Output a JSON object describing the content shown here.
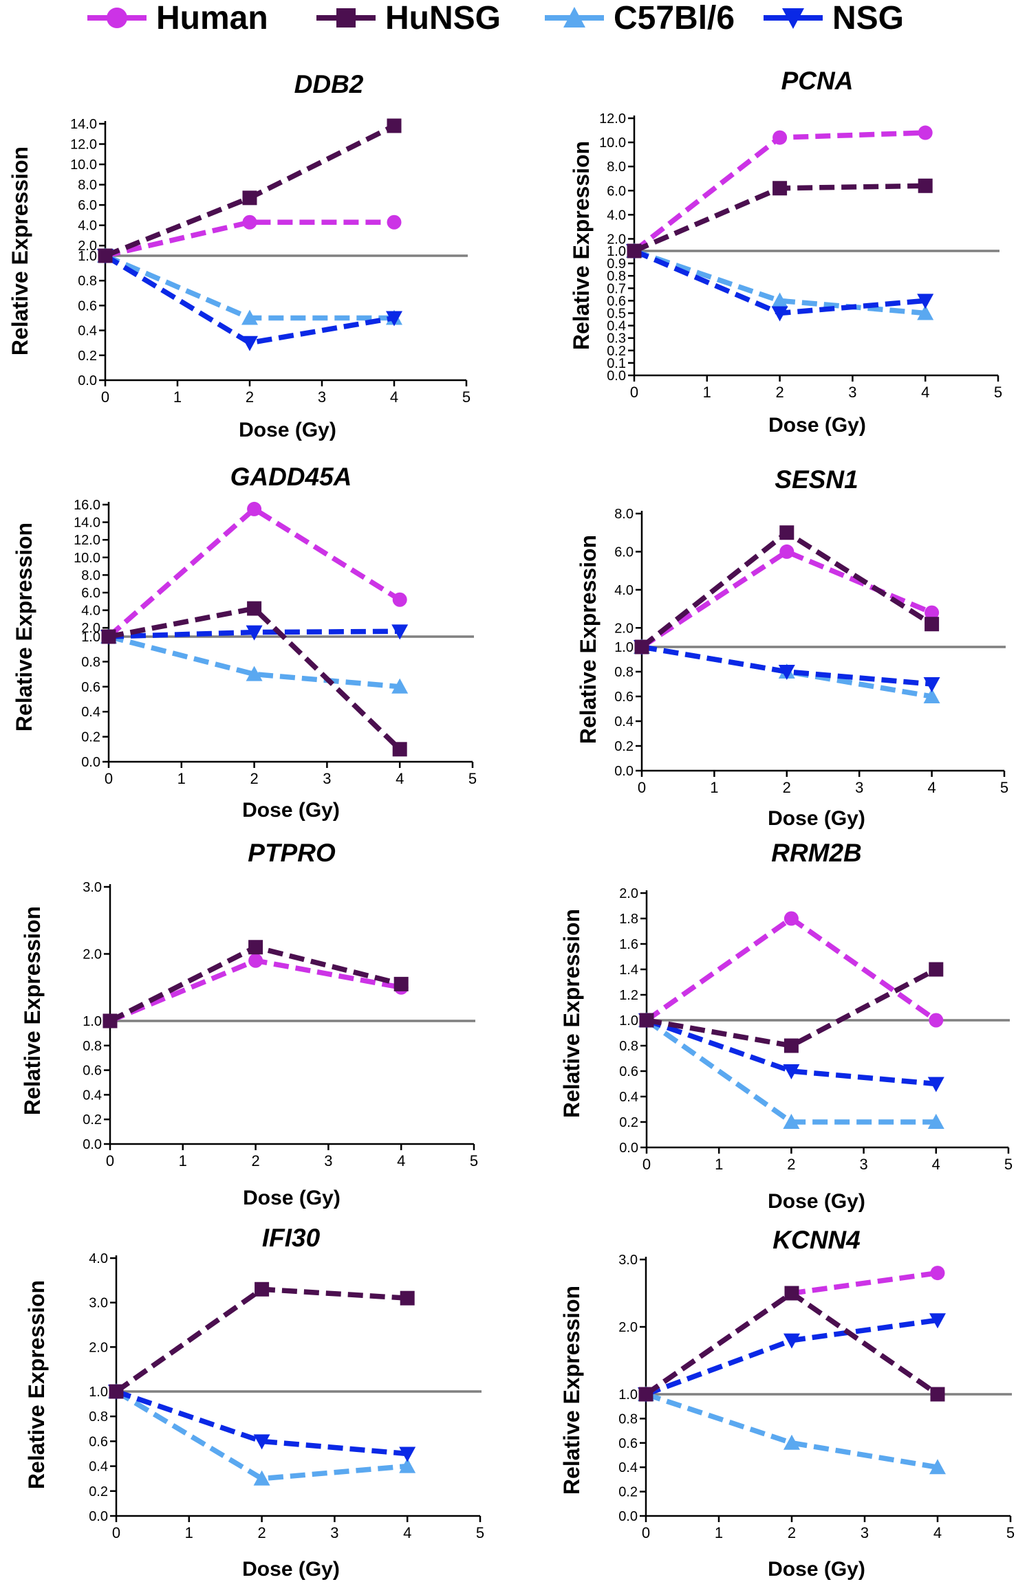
{
  "legend": [
    {
      "name": "Human",
      "color": "#cc33e6",
      "marker": "circle"
    },
    {
      "name": "HuNSG",
      "color": "#4b0f4f",
      "marker": "square"
    },
    {
      "name": "C57Bl/6",
      "color": "#5aa8f0",
      "marker": "triangle-up"
    },
    {
      "name": "NSG",
      "color": "#0a28e6",
      "marker": "triangle-down"
    }
  ],
  "reference_line_color": "#808080",
  "chart_data": [
    {
      "type": "line",
      "title": "DDB2",
      "xlabel": "Dose (Gy)",
      "ylabel": "Relative Expression",
      "xlim": [
        0,
        5
      ],
      "xticks": [
        "0",
        "1",
        "2",
        "3",
        "4",
        "5"
      ],
      "y_ticks_lower": [
        "0.0",
        "0.2",
        "0.4",
        "0.6",
        "0.8",
        "1.0"
      ],
      "y_ticks_upper": [
        "2.0",
        "4.0",
        "6.0",
        "8.0",
        "10.0",
        "12.0",
        "14.0"
      ],
      "upper_max": 14,
      "reference_line": 1.0,
      "series": [
        {
          "name": "Human",
          "x": [
            0,
            2,
            4
          ],
          "values": [
            1.0,
            4.3,
            4.3
          ]
        },
        {
          "name": "HuNSG",
          "x": [
            0,
            2,
            4
          ],
          "values": [
            1.0,
            6.7,
            13.8
          ]
        },
        {
          "name": "C57Bl/6",
          "x": [
            0,
            2,
            4
          ],
          "values": [
            1.0,
            0.5,
            0.5
          ]
        },
        {
          "name": "NSG",
          "x": [
            0,
            2,
            4
          ],
          "values": [
            1.0,
            0.3,
            0.5
          ]
        }
      ]
    },
    {
      "type": "line",
      "title": "PCNA",
      "xlabel": "Dose (Gy)",
      "ylabel": "Relative Expression",
      "xlim": [
        0,
        5
      ],
      "xticks": [
        "0",
        "1",
        "2",
        "3",
        "4",
        "5"
      ],
      "y_ticks_lower": [
        "0.0",
        "0.1",
        "0.2",
        "0.3",
        "0.4",
        "0.5",
        "0.6",
        "0.7",
        "0.8",
        "0.9",
        "1.0"
      ],
      "y_ticks_upper": [
        "2.0",
        "4.0",
        "6.0",
        "8.0",
        "10.0",
        "12.0"
      ],
      "upper_max": 12,
      "reference_line": 1.0,
      "series": [
        {
          "name": "Human",
          "x": [
            0,
            2,
            4
          ],
          "values": [
            1.0,
            10.4,
            10.8
          ]
        },
        {
          "name": "HuNSG",
          "x": [
            0,
            2,
            4
          ],
          "values": [
            1.0,
            6.2,
            6.4
          ]
        },
        {
          "name": "C57Bl/6",
          "x": [
            0,
            2,
            4
          ],
          "values": [
            1.0,
            0.6,
            0.5
          ]
        },
        {
          "name": "NSG",
          "x": [
            0,
            2,
            4
          ],
          "values": [
            1.0,
            0.5,
            0.6
          ]
        }
      ]
    },
    {
      "type": "line",
      "title": "GADD45A",
      "xlabel": "Dose (Gy)",
      "ylabel": "Relative Expression",
      "xlim": [
        0,
        5
      ],
      "xticks": [
        "0",
        "1",
        "2",
        "3",
        "4",
        "5"
      ],
      "y_ticks_lower": [
        "0.0",
        "0.2",
        "0.4",
        "0.6",
        "0.8",
        "1.0"
      ],
      "y_ticks_upper": [
        "2.0",
        "4.0",
        "6.0",
        "8.0",
        "10.0",
        "12.0",
        "14.0",
        "16.0"
      ],
      "upper_max": 16,
      "reference_line": 1.0,
      "series": [
        {
          "name": "Human",
          "x": [
            0,
            2,
            4
          ],
          "values": [
            1.0,
            15.5,
            5.2
          ]
        },
        {
          "name": "HuNSG",
          "x": [
            0,
            2,
            4
          ],
          "values": [
            1.0,
            4.2,
            0.1
          ]
        },
        {
          "name": "C57Bl/6",
          "x": [
            0,
            2,
            4
          ],
          "values": [
            1.0,
            0.7,
            0.6
          ]
        },
        {
          "name": "NSG",
          "x": [
            0,
            2,
            4
          ],
          "values": [
            1.0,
            1.5,
            1.6
          ]
        }
      ]
    },
    {
      "type": "line",
      "title": "SESN1",
      "xlabel": "Dose (Gy)",
      "ylabel": "Relative Expression",
      "xlim": [
        0,
        5
      ],
      "xticks": [
        "0",
        "1",
        "2",
        "3",
        "4",
        "5"
      ],
      "y_ticks_lower": [
        "0.0",
        "0.2",
        "0.4",
        "0.6",
        "0.8",
        "1.0"
      ],
      "y_ticks_upper": [
        "2.0",
        "4.0",
        "6.0",
        "8.0"
      ],
      "upper_max": 8,
      "reference_line": 1.0,
      "series": [
        {
          "name": "Human",
          "x": [
            0,
            2,
            4
          ],
          "values": [
            1.0,
            6.0,
            2.8
          ]
        },
        {
          "name": "HuNSG",
          "x": [
            0,
            2,
            4
          ],
          "values": [
            1.0,
            7.0,
            2.2
          ]
        },
        {
          "name": "C57Bl/6",
          "x": [
            0,
            2,
            4
          ],
          "values": [
            1.0,
            0.8,
            0.6
          ]
        },
        {
          "name": "NSG",
          "x": [
            0,
            2,
            4
          ],
          "values": [
            1.0,
            0.8,
            0.7
          ]
        }
      ]
    },
    {
      "type": "line",
      "title": "PTPRO",
      "xlabel": "Dose (Gy)",
      "ylabel": "Relative Expression",
      "xlim": [
        0,
        5
      ],
      "xticks": [
        "0",
        "1",
        "2",
        "3",
        "4",
        "5"
      ],
      "y_ticks_lower": [
        "0.0",
        "0.2",
        "0.4",
        "0.6",
        "0.8",
        "1.0"
      ],
      "y_ticks_upper": [
        "2.0",
        "3.0"
      ],
      "upper_max": 3,
      "reference_line": 1.0,
      "series": [
        {
          "name": "Human",
          "x": [
            0,
            2,
            4
          ],
          "values": [
            1.0,
            1.9,
            1.5
          ]
        },
        {
          "name": "HuNSG",
          "x": [
            0,
            2,
            4
          ],
          "values": [
            1.0,
            2.1,
            1.55
          ]
        }
      ]
    },
    {
      "type": "line",
      "title": "RRM2B",
      "xlabel": "Dose (Gy)",
      "ylabel": "Relative Expression",
      "xlim": [
        0,
        5
      ],
      "xticks": [
        "0",
        "1",
        "2",
        "3",
        "4",
        "5"
      ],
      "y_ticks": [
        "0.0",
        "0.2",
        "0.4",
        "0.6",
        "0.8",
        "1.0",
        "1.2",
        "1.4",
        "1.6",
        "1.8",
        "2.0"
      ],
      "ylim": [
        0,
        2
      ],
      "reference_line": 1.0,
      "series": [
        {
          "name": "Human",
          "x": [
            0,
            2,
            4
          ],
          "values": [
            1.0,
            1.8,
            1.0
          ]
        },
        {
          "name": "HuNSG",
          "x": [
            0,
            2,
            4
          ],
          "values": [
            1.0,
            0.8,
            1.4
          ]
        },
        {
          "name": "C57Bl/6",
          "x": [
            0,
            2,
            4
          ],
          "values": [
            1.0,
            0.2,
            0.2
          ]
        },
        {
          "name": "NSG",
          "x": [
            0,
            2,
            4
          ],
          "values": [
            1.0,
            0.6,
            0.5
          ]
        }
      ]
    },
    {
      "type": "line",
      "title": "IFI30",
      "xlabel": "Dose (Gy)",
      "ylabel": "Relative Expression",
      "xlim": [
        0,
        5
      ],
      "xticks": [
        "0",
        "1",
        "2",
        "3",
        "4",
        "5"
      ],
      "y_ticks_lower": [
        "0.0",
        "0.2",
        "0.4",
        "0.6",
        "0.8",
        "1.0"
      ],
      "y_ticks_upper": [
        "2.0",
        "3.0",
        "4.0"
      ],
      "upper_max": 4,
      "reference_line": 1.0,
      "series": [
        {
          "name": "HuNSG",
          "x": [
            0,
            2,
            4
          ],
          "values": [
            1.0,
            3.3,
            3.1
          ]
        },
        {
          "name": "C57Bl/6",
          "x": [
            0,
            2,
            4
          ],
          "values": [
            1.0,
            0.3,
            0.4
          ]
        },
        {
          "name": "NSG",
          "x": [
            0,
            2,
            4
          ],
          "values": [
            1.0,
            0.6,
            0.5
          ]
        }
      ]
    },
    {
      "type": "line",
      "title": "KCNN4",
      "xlabel": "Dose (Gy)",
      "ylabel": "Relative Expression",
      "xlim": [
        0,
        5
      ],
      "xticks": [
        "0",
        "1",
        "2",
        "3",
        "4",
        "5"
      ],
      "y_ticks_lower": [
        "0.0",
        "0.2",
        "0.4",
        "0.6",
        "0.8",
        "1.0"
      ],
      "y_ticks_upper": [
        "2.0",
        "3.0"
      ],
      "upper_max": 3,
      "reference_line": 1.0,
      "series": [
        {
          "name": "Human",
          "x": [
            0,
            2,
            4
          ],
          "values": [
            1.0,
            2.5,
            2.8
          ]
        },
        {
          "name": "HuNSG",
          "x": [
            0,
            2,
            4
          ],
          "values": [
            1.0,
            2.5,
            1.0
          ]
        },
        {
          "name": "C57Bl/6",
          "x": [
            0,
            2,
            4
          ],
          "values": [
            1.0,
            0.6,
            0.4
          ]
        },
        {
          "name": "NSG",
          "x": [
            0,
            2,
            4
          ],
          "values": [
            1.0,
            1.8,
            2.1
          ]
        }
      ]
    }
  ]
}
